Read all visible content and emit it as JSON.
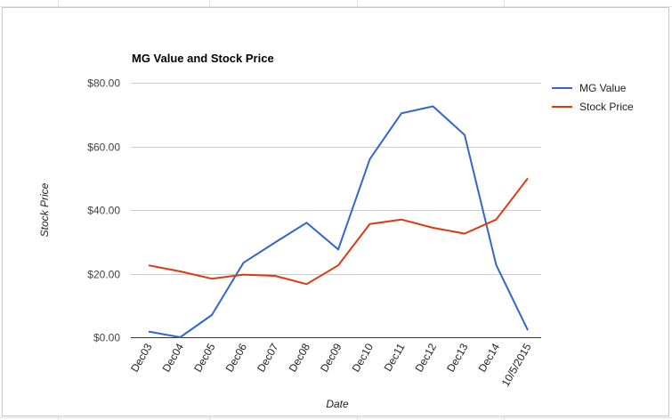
{
  "chart_data": {
    "type": "line",
    "title": "MG Value and Stock Price",
    "xlabel": "Date",
    "ylabel": "Stock Price",
    "ylim": [
      0,
      80
    ],
    "yticks": [
      "$0.00",
      "$20.00",
      "$40.00",
      "$60.00",
      "$80.00"
    ],
    "ytick_values": [
      0,
      20,
      40,
      60,
      80
    ],
    "grid": true,
    "legend_position": "right",
    "categories": [
      "Dec03",
      "Dec04",
      "Dec05",
      "Dec06",
      "Dec07",
      "Dec08",
      "Dec09",
      "Dec10",
      "Dec11",
      "Dec12",
      "Dec13",
      "Dec14",
      "10/5/2015"
    ],
    "series": [
      {
        "name": "MG Value",
        "color": "#3366cc",
        "values": [
          1.8,
          0.0,
          7.0,
          23.4,
          29.8,
          36.0,
          27.6,
          56.0,
          70.4,
          72.6,
          63.6,
          22.7,
          2.2
        ]
      },
      {
        "name": "Stock Price",
        "color": "#dc3912",
        "values": [
          22.6,
          20.7,
          18.4,
          19.7,
          19.3,
          16.7,
          22.6,
          35.6,
          37.0,
          34.4,
          32.6,
          37.0,
          50.0
        ]
      }
    ]
  }
}
